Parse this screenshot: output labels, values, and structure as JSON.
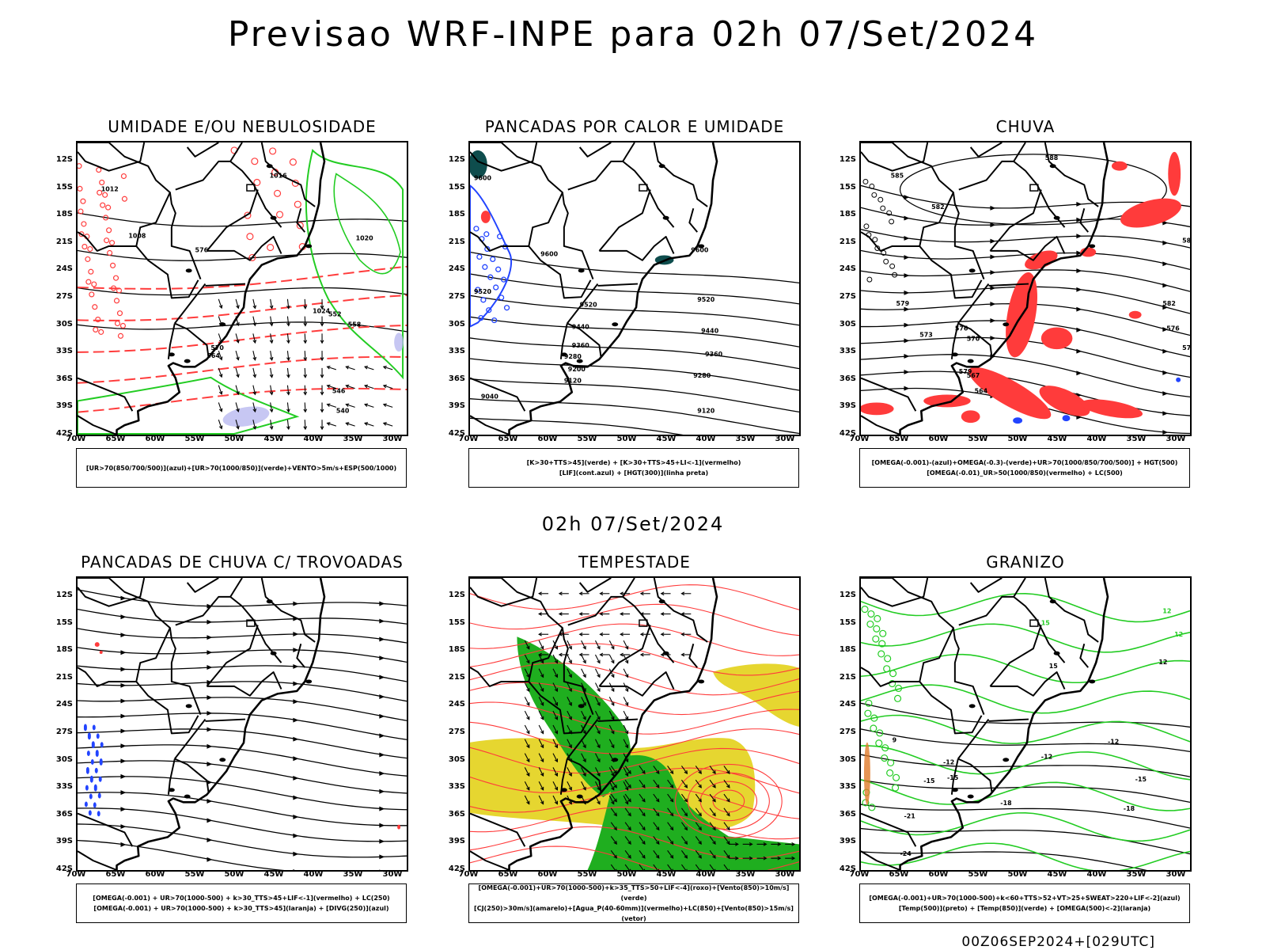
{
  "title": "Previsao WRF-INPE  para 02h 07/Set/2024",
  "subtitle": "02h 07/Set/2024",
  "footer": "00Z06SEP2024+[029UTC]",
  "lat_labels": [
    "12S",
    "15S",
    "18S",
    "21S",
    "24S",
    "27S",
    "30S",
    "33S",
    "36S",
    "39S",
    "42S"
  ],
  "lon_labels": [
    "70W",
    "65W",
    "60W",
    "55W",
    "50W",
    "45W",
    "40W",
    "35W",
    "30W"
  ],
  "panels": [
    {
      "title": "UMIDADE E/OU NEBULOSIDADE",
      "legend": [
        "[UR>70(850/700/500)](azul)+[UR>70(1000/850)](verde)+VENTO>5m/s+ESP(500/1000)"
      ],
      "contour_labels": [
        "1012",
        "1016",
        "1020",
        "1024",
        "1008",
        "570",
        "564",
        "558",
        "552",
        "546",
        "540",
        "576"
      ]
    },
    {
      "title": "PANCADAS POR CALOR E UMIDADE",
      "legend": [
        "[K>30+TTS>45](verde) + [K>30+TTS>45+LI<-1](vermelho)",
        "[LIF](cont.azul) + [HGT(300)](linha preta)"
      ],
      "contour_labels": [
        "9600",
        "9520",
        "9440",
        "9360",
        "9280",
        "9200",
        "9120",
        "9040"
      ]
    },
    {
      "title": "CHUVA",
      "legend": [
        "[OMEGA(-0.001)-(azul)+OMEGA(-0.3)-(verde)+UR>70(1000/850/700/500)] + HGT(500)",
        "[OMEGA(-0.01)_UR>50(1000/850)(vermelho) + LC(500)"
      ],
      "contour_labels": [
        "585",
        "588",
        "582",
        "579",
        "576",
        "573",
        "570",
        "567",
        "564"
      ]
    },
    {
      "title": "PANCADAS DE CHUVA C/ TROVOADAS",
      "legend": [
        "[OMEGA(-0.001) + UR>70(1000-500) + k>30_TTS>45+LIF<-1](vermelho) + LC(250)",
        "[OMEGA(-0.001) + UR>70(1000-500) + k>30_TTS>45](laranja) + [DIVG(250)](azul)"
      ],
      "contour_labels": []
    },
    {
      "title": "TEMPESTADE",
      "legend": [
        "[OMEGA(-0.001)+UR>70(1000-500)+k>35_TTS>50+LIF<-4](roxo)+[Vento(850)>10m/s](verde)",
        "[CJ(250)>30m/s](amarelo)+[Agua_P(40-60mm)](vermelho)+LC(850)+[Vento(850)>15m/s](vetor)"
      ],
      "contour_labels": []
    },
    {
      "title": "GRANIZO",
      "legend": [
        "[OMEGA(-0.001)+UR>70(1000-500)+k<60+TTS>52+VT>25+SWEAT>220+LIF<-2](azul)",
        "[Temp(500)](preto) + [Temp(850)](verde) + [OMEGA(500)<-2](laranja)"
      ],
      "contour_labels": [
        "-12",
        "-15",
        "-18",
        "-21",
        "-24",
        "12",
        "15",
        "9"
      ]
    }
  ],
  "colors": {
    "contour_black": "#000000",
    "red": "#ff3b3b",
    "green": "#22cc22",
    "blue": "#2244ff",
    "yellow": "#e6d630",
    "dark_green_fill": "#1fae1f",
    "lavender": "#b9b9f0"
  }
}
